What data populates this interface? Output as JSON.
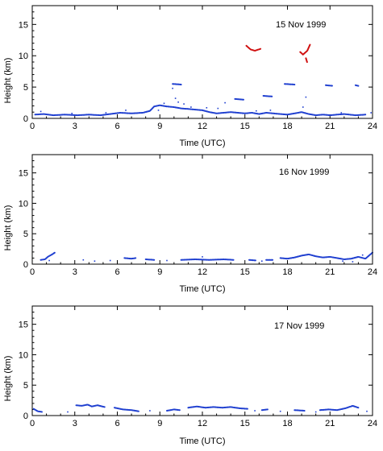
{
  "chart_data": [
    {
      "type": "scatter",
      "title": "15 Nov 1999",
      "xlabel": "Time (UTC)",
      "ylabel": "Height (km)",
      "xlim": [
        0,
        24
      ],
      "ylim": [
        0,
        18
      ],
      "xticks": [
        "0",
        "3",
        "6",
        "9",
        "12",
        "15",
        "18",
        "21",
        "24"
      ],
      "yticks": [
        "0",
        "5",
        "10",
        "15"
      ],
      "grid": false,
      "series": [
        {
          "color": "#1f3fd0",
          "segments": [
            [
              [
                0.2,
                0.6
              ],
              [
                0.8,
                0.7
              ],
              [
                1.5,
                0.5
              ],
              [
                2.3,
                0.6
              ],
              [
                3.2,
                0.5
              ],
              [
                4.0,
                0.6
              ],
              [
                4.8,
                0.5
              ],
              [
                5.5,
                0.7
              ],
              [
                6.2,
                0.9
              ],
              [
                7.0,
                0.8
              ],
              [
                7.8,
                0.9
              ],
              [
                8.3,
                1.2
              ],
              [
                8.6,
                1.9
              ],
              [
                9.0,
                2.1
              ],
              [
                9.5,
                1.9
              ],
              [
                10.0,
                1.8
              ],
              [
                10.5,
                1.6
              ],
              [
                11.0,
                1.5
              ],
              [
                11.5,
                1.4
              ],
              [
                12.0,
                1.3
              ],
              [
                12.5,
                1.0
              ],
              [
                13.0,
                0.8
              ],
              [
                13.5,
                0.9
              ],
              [
                14.0,
                1.0
              ],
              [
                14.5,
                0.9
              ],
              [
                15.0,
                0.8
              ],
              [
                15.5,
                0.9
              ],
              [
                16.0,
                0.7
              ],
              [
                16.5,
                0.9
              ],
              [
                17.0,
                0.8
              ],
              [
                17.5,
                0.7
              ],
              [
                18.0,
                0.6
              ],
              [
                18.5,
                0.8
              ],
              [
                19.0,
                1.0
              ],
              [
                19.5,
                0.7
              ],
              [
                20.0,
                0.5
              ],
              [
                20.5,
                0.6
              ],
              [
                21.0,
                0.5
              ],
              [
                21.5,
                0.6
              ],
              [
                22.0,
                0.7
              ],
              [
                22.8,
                0.5
              ],
              [
                23.5,
                0.6
              ]
            ],
            [
              [
                9.9,
                5.5
              ],
              [
                10.5,
                5.4
              ]
            ],
            [
              [
                14.3,
                3.1
              ],
              [
                14.9,
                3.0
              ]
            ],
            [
              [
                16.3,
                3.6
              ],
              [
                16.9,
                3.5
              ]
            ],
            [
              [
                17.8,
                5.5
              ],
              [
                18.5,
                5.4
              ]
            ],
            [
              [
                20.7,
                5.3
              ],
              [
                21.2,
                5.2
              ]
            ],
            [
              [
                22.8,
                5.3
              ],
              [
                23.0,
                5.2
              ]
            ]
          ],
          "points": [
            [
              10.1,
              3.2
            ],
            [
              10.3,
              2.6
            ],
            [
              9.9,
              4.8
            ],
            [
              13.1,
              1.6
            ],
            [
              13.6,
              2.5
            ],
            [
              12.3,
              1.7
            ],
            [
              11.2,
              1.8
            ],
            [
              10.7,
              2.3
            ],
            [
              9.3,
              2.4
            ],
            [
              8.9,
              1.3
            ],
            [
              15.8,
              1.2
            ],
            [
              16.8,
              1.3
            ],
            [
              19.3,
              3.4
            ],
            [
              19.1,
              1.8
            ],
            [
              21.8,
              0.9
            ],
            [
              6.6,
              1.3
            ],
            [
              5.2,
              0.9
            ],
            [
              2.8,
              0.8
            ],
            [
              0.6,
              1.1
            ],
            [
              23.9,
              0.9
            ]
          ]
        },
        {
          "color": "#d01010",
          "segments": [
            [
              [
                15.1,
                11.6
              ],
              [
                15.4,
                11.0
              ],
              [
                15.7,
                10.8
              ],
              [
                16.1,
                11.1
              ]
            ],
            [
              [
                18.9,
                10.6
              ],
              [
                19.1,
                10.2
              ],
              [
                19.4,
                10.8
              ],
              [
                19.6,
                11.8
              ]
            ],
            [
              [
                19.3,
                9.6
              ],
              [
                19.4,
                8.9
              ]
            ]
          ],
          "points": []
        }
      ]
    },
    {
      "type": "scatter",
      "title": "16 Nov 1999",
      "xlabel": "Time (UTC)",
      "ylabel": "Height (km)",
      "xlim": [
        0,
        24
      ],
      "ylim": [
        0,
        18
      ],
      "xticks": [
        "0",
        "3",
        "6",
        "9",
        "12",
        "15",
        "18",
        "21",
        "24"
      ],
      "yticks": [
        "0",
        "5",
        "10",
        "15"
      ],
      "grid": false,
      "series": [
        {
          "color": "#1f3fd0",
          "segments": [
            [
              [
                0.6,
                0.7
              ],
              [
                0.9,
                0.8
              ],
              [
                1.1,
                1.2
              ],
              [
                1.4,
                1.6
              ],
              [
                1.6,
                1.9
              ]
            ],
            [
              [
                6.5,
                1.0
              ],
              [
                7.0,
                0.9
              ],
              [
                7.3,
                1.0
              ]
            ],
            [
              [
                8.0,
                0.8
              ],
              [
                8.6,
                0.7
              ]
            ],
            [
              [
                10.5,
                0.7
              ],
              [
                11.5,
                0.8
              ],
              [
                12.5,
                0.7
              ],
              [
                13.5,
                0.8
              ],
              [
                14.2,
                0.7
              ]
            ],
            [
              [
                15.3,
                0.7
              ],
              [
                15.8,
                0.6
              ]
            ],
            [
              [
                16.5,
                0.7
              ],
              [
                17.0,
                0.7
              ]
            ],
            [
              [
                17.5,
                1.0
              ],
              [
                18.0,
                0.9
              ],
              [
                18.5,
                1.1
              ],
              [
                19.0,
                1.4
              ],
              [
                19.5,
                1.6
              ],
              [
                20.0,
                1.3
              ],
              [
                20.5,
                1.1
              ],
              [
                21.0,
                1.2
              ],
              [
                21.5,
                1.0
              ],
              [
                22.0,
                0.8
              ],
              [
                22.5,
                0.9
              ],
              [
                23.0,
                1.2
              ],
              [
                23.5,
                0.9
              ],
              [
                24.0,
                1.9
              ]
            ]
          ],
          "points": [
            [
              1.2,
              0.6
            ],
            [
              3.6,
              0.7
            ],
            [
              4.4,
              0.5
            ],
            [
              5.5,
              0.6
            ],
            [
              9.5,
              0.6
            ],
            [
              12.0,
              1.2
            ],
            [
              16.2,
              0.5
            ],
            [
              21.9,
              0.5
            ],
            [
              23.3,
              1.5
            ],
            [
              22.6,
              0.4
            ]
          ]
        }
      ]
    },
    {
      "type": "scatter",
      "title": "17 Nov 1999",
      "xlabel": "Time (UTC)",
      "ylabel": "Height (km)",
      "xlim": [
        0,
        24
      ],
      "ylim": [
        0,
        18
      ],
      "xticks": [
        "0",
        "3",
        "6",
        "9",
        "12",
        "15",
        "18",
        "21",
        "24"
      ],
      "yticks": [
        "0",
        "5",
        "10",
        "15"
      ],
      "grid": false,
      "series": [
        {
          "color": "#1f3fd0",
          "segments": [
            [
              [
                0.1,
                1.1
              ],
              [
                0.4,
                0.7
              ],
              [
                0.7,
                0.6
              ]
            ],
            [
              [
                3.1,
                1.7
              ],
              [
                3.5,
                1.6
              ],
              [
                3.9,
                1.8
              ],
              [
                4.2,
                1.5
              ],
              [
                4.6,
                1.7
              ],
              [
                5.1,
                1.4
              ]
            ],
            [
              [
                5.8,
                1.3
              ],
              [
                6.4,
                1.0
              ],
              [
                7.0,
                0.9
              ],
              [
                7.5,
                0.7
              ]
            ],
            [
              [
                9.5,
                0.8
              ],
              [
                10.0,
                1.0
              ],
              [
                10.4,
                0.9
              ]
            ],
            [
              [
                11.0,
                1.3
              ],
              [
                11.6,
                1.5
              ],
              [
                12.2,
                1.3
              ],
              [
                12.8,
                1.4
              ],
              [
                13.4,
                1.3
              ],
              [
                14.0,
                1.4
              ],
              [
                14.6,
                1.2
              ],
              [
                15.2,
                1.1
              ]
            ],
            [
              [
                16.2,
                0.9
              ],
              [
                16.6,
                1.0
              ]
            ],
            [
              [
                18.5,
                0.9
              ],
              [
                19.2,
                0.8
              ]
            ],
            [
              [
                20.3,
                0.9
              ],
              [
                20.9,
                1.0
              ],
              [
                21.5,
                0.9
              ],
              [
                22.1,
                1.2
              ],
              [
                22.6,
                1.6
              ],
              [
                23.0,
                1.3
              ]
            ]
          ],
          "points": [
            [
              2.5,
              0.6
            ],
            [
              8.3,
              0.8
            ],
            [
              15.7,
              0.8
            ],
            [
              17.5,
              0.7
            ],
            [
              20.0,
              0.6
            ],
            [
              23.6,
              0.7
            ]
          ]
        }
      ]
    }
  ]
}
